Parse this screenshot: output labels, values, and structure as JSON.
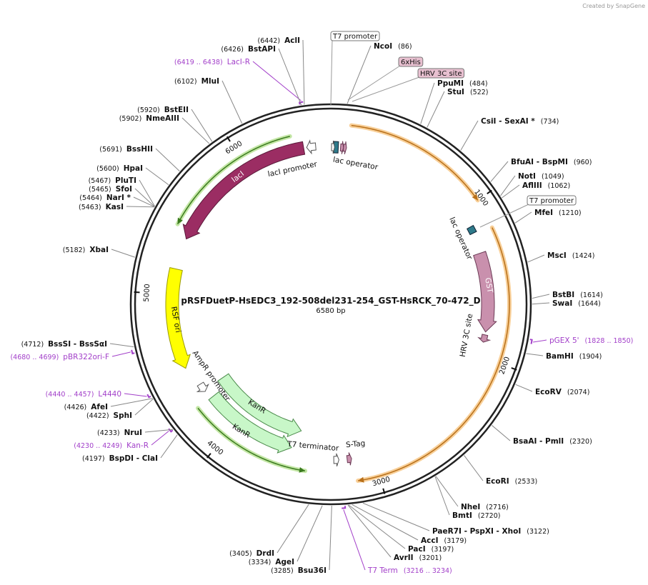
{
  "credit": "Created by SnapGene",
  "title": "pRSFDuetP-HsEDC3_192-508del231-254_GST-HsRCK_70-472_D",
  "length": {
    "value": 6580,
    "label": "6580 bp"
  },
  "ticks": [
    1000,
    2000,
    3000,
    4000,
    5000,
    6000
  ],
  "sites": [
    {
      "name": "NcoI",
      "position": {
        "value": 86,
        "label": "(86)"
      }
    },
    {
      "name": "PpuMI",
      "position": {
        "value": 484,
        "label": "(484)"
      }
    },
    {
      "name": "StuI",
      "position": {
        "value": 522,
        "label": "(522)"
      }
    },
    {
      "name": "CsiI  -  SexAI *",
      "position": {
        "value": 734,
        "label": "(734)"
      }
    },
    {
      "name": "BfuAI  -  BspMI",
      "position": {
        "value": 960,
        "label": "(960)"
      }
    },
    {
      "name": "NotI",
      "position": {
        "value": 1049,
        "label": "(1049)"
      }
    },
    {
      "name": "AflIII",
      "position": {
        "value": 1062,
        "label": "(1062)"
      }
    },
    {
      "name": "MfeI",
      "position": {
        "value": 1210,
        "label": "(1210)"
      }
    },
    {
      "name": "MscI",
      "position": {
        "value": 1424,
        "label": "(1424)"
      }
    },
    {
      "name": "BstBI",
      "position": {
        "value": 1614,
        "label": "(1614)"
      }
    },
    {
      "name": "SwaI",
      "position": {
        "value": 1644,
        "label": "(1644)"
      }
    },
    {
      "name": "pGEX 5'",
      "range": {
        "start": 1828,
        "end": 1850,
        "label": "(1828 .. 1850)"
      }
    },
    {
      "name": "BamHI",
      "position": {
        "value": 1904,
        "label": "(1904)"
      }
    },
    {
      "name": "EcoRV",
      "position": {
        "value": 2074,
        "label": "(2074)"
      }
    },
    {
      "name": "BsaAI  -  PmlI",
      "position": {
        "value": 2320,
        "label": "(2320)"
      }
    },
    {
      "name": "EcoRI",
      "position": {
        "value": 2533,
        "label": "(2533)"
      }
    },
    {
      "name": "NheI",
      "position": {
        "value": 2716,
        "label": "(2716)"
      }
    },
    {
      "name": "BmtI",
      "position": {
        "value": 2720,
        "label": "(2720)"
      }
    },
    {
      "name": "PaeR7I  -  PspXI  -  XhoI",
      "position": {
        "value": 3122,
        "label": "(3122)"
      }
    },
    {
      "name": "AccI",
      "position": {
        "value": 3179,
        "label": "(3179)"
      }
    },
    {
      "name": "PacI",
      "position": {
        "value": 3197,
        "label": "(3197)"
      }
    },
    {
      "name": "AvrII",
      "position": {
        "value": 3201,
        "label": "(3201)"
      }
    },
    {
      "name": "T7 Term",
      "range": {
        "start": 3216,
        "end": 3234,
        "label": "(3216 .. 3234)"
      }
    },
    {
      "name": "Bsu36I",
      "position": {
        "value": 3285,
        "label": "(3285)"
      }
    },
    {
      "name": "AgeI",
      "position": {
        "value": 3334,
        "label": "(3334)"
      }
    },
    {
      "name": "DrdI",
      "position": {
        "value": 3405,
        "label": "(3405)"
      }
    },
    {
      "name": "BspDI  -  ClaI",
      "position": {
        "value": 4197,
        "label": "(4197)"
      }
    },
    {
      "name": "Kan-R",
      "range": {
        "start": 4230,
        "end": 4249,
        "label": "(4230 .. 4249)"
      }
    },
    {
      "name": "NruI",
      "position": {
        "value": 4233,
        "label": "(4233)"
      }
    },
    {
      "name": "SphI",
      "position": {
        "value": 4422,
        "label": "(4422)"
      }
    },
    {
      "name": "AfeI",
      "position": {
        "value": 4426,
        "label": "(4426)"
      }
    },
    {
      "name": "L4440",
      "range": {
        "start": 4440,
        "end": 4457,
        "label": "(4440 .. 4457)"
      }
    },
    {
      "name": "pBR322ori-F",
      "range": {
        "start": 4680,
        "end": 4699,
        "label": "(4680 .. 4699)"
      }
    },
    {
      "name": "BssSI  -  BssSαI",
      "position": {
        "value": 4712,
        "label": "(4712)"
      }
    },
    {
      "name": "XbaI",
      "position": {
        "value": 5182,
        "label": "(5182)"
      }
    },
    {
      "name": "KasI",
      "position": {
        "value": 5463,
        "label": "(5463)"
      }
    },
    {
      "name": "NarI *",
      "position": {
        "value": 5464,
        "label": "(5464)"
      }
    },
    {
      "name": "SfoI",
      "position": {
        "value": 5465,
        "label": "(5465)"
      }
    },
    {
      "name": "PluTI",
      "position": {
        "value": 5467,
        "label": "(5467)"
      }
    },
    {
      "name": "HpaI",
      "position": {
        "value": 5600,
        "label": "(5600)"
      }
    },
    {
      "name": "BssHII",
      "position": {
        "value": 5691,
        "label": "(5691)"
      }
    },
    {
      "name": "NmeAIII",
      "position": {
        "value": 5902,
        "label": "(5902)"
      }
    },
    {
      "name": "BstEII",
      "position": {
        "value": 5920,
        "label": "(5920)"
      }
    },
    {
      "name": "MluI",
      "position": {
        "value": 6102,
        "label": "(6102)"
      }
    },
    {
      "name": "LacI-R",
      "range": {
        "start": 6419,
        "end": 6438,
        "label": "(6419 .. 6438)"
      }
    },
    {
      "name": "BstAPI",
      "position": {
        "value": 6426,
        "label": "(6426)"
      }
    },
    {
      "name": "AclI",
      "position": {
        "value": 6442,
        "label": "(6442)"
      }
    }
  ],
  "boxed_features": [
    "T7 promoter",
    "6xHis",
    "HRV 3C site",
    "T7 promoter"
  ],
  "features": [
    "lacI promoter",
    "lac operator",
    "lacI",
    "RSF ori",
    "AmpR promoter",
    "KanR",
    "KanR",
    "T7 terminator",
    "S-Tag",
    "lac operator",
    "GST",
    "HRV 3C site"
  ]
}
